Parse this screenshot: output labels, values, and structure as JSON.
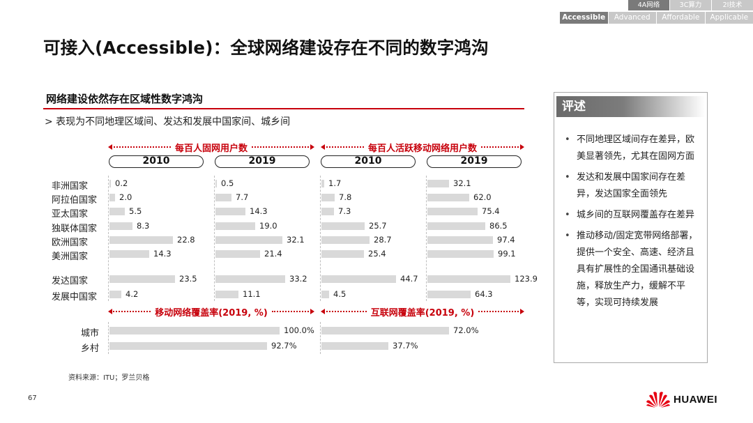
{
  "nav": {
    "top_tabs": [
      {
        "label": "4A网络",
        "active": true
      },
      {
        "label": "3C算力",
        "active": false
      },
      {
        "label": "2I技术",
        "active": false
      }
    ],
    "bottom_tabs": [
      {
        "label": "Accessible",
        "active": true
      },
      {
        "label": "Advanced",
        "active": false
      },
      {
        "label": "Affordable",
        "active": false
      },
      {
        "label": "Applicable",
        "active": false
      }
    ]
  },
  "title": "可接入(Accessible)：全球网络建设存在不同的数字鸿沟",
  "section": {
    "title": "网络建设依然存在区域性数字鸿沟",
    "subtitle": "> 表现为不同地理区域间、发达和发展中国家间、城乡间"
  },
  "headers": {
    "fixed": "每百人固网用户数",
    "mobile": "每百人活跃移动网络用户数",
    "mobile_coverage": "移动网络覆盖率(2019, %)",
    "internet_coverage": "互联网覆盖率(2019, %)"
  },
  "years": [
    "2010",
    "2019",
    "2010",
    "2019"
  ],
  "chart_data": {
    "type": "bar",
    "categories": [
      "非洲国家",
      "阿拉伯国家",
      "亚太国家",
      "独联体国家",
      "欧洲国家",
      "美洲国家",
      "发达国家",
      "发展中国家"
    ],
    "series": [
      {
        "name": "2010",
        "values": [
          0.2,
          2.0,
          5.5,
          8.3,
          22.8,
          14.3,
          23.5,
          4.2
        ]
      },
      {
        "name": "2019",
        "values": [
          0.5,
          7.7,
          14.3,
          19.0,
          32.1,
          21.4,
          33.2,
          11.1
        ]
      },
      {
        "name": "2010",
        "values": [
          1.7,
          7.8,
          7.3,
          25.7,
          28.7,
          25.4,
          44.7,
          4.5
        ]
      },
      {
        "name": "2019",
        "values": [
          32.1,
          62.0,
          75.4,
          86.5,
          97.4,
          99.1,
          123.9,
          64.3
        ]
      }
    ],
    "value_labels": [
      [
        "0.2",
        "2.0",
        "5.5",
        "8.3",
        "22.8",
        "14.3",
        "23.5",
        "4.2"
      ],
      [
        "0.5",
        "7.7",
        "14.3",
        "19.0",
        "32.1",
        "21.4",
        "33.2",
        "11.1"
      ],
      [
        "1.7",
        "7.8",
        "7.3",
        "25.7",
        "28.7",
        "25.4",
        "44.7",
        "4.5"
      ],
      [
        "32.1",
        "62.0",
        "75.4",
        "86.5",
        "97.4",
        "99.1",
        "123.9",
        "64.3"
      ]
    ],
    "scale_max": [
      30,
      40,
      50,
      125
    ],
    "coverage": {
      "categories": [
        "城市",
        "乡村"
      ],
      "mobile_values": [
        100.0,
        92.7
      ],
      "mobile_labels": [
        "100.0%",
        "92.7%"
      ],
      "internet_values": [
        72.0,
        37.7
      ],
      "internet_labels": [
        "72.0%",
        "37.7%"
      ]
    }
  },
  "source": "资料来源：ITU；罗兰贝格",
  "page_number": "67",
  "comment": {
    "title": "评述",
    "items": [
      "不同地理区域间存在差异，欧美显著领先，尤其在固网方面",
      "发达和发展中国家间存在差异，发达国家全面领先",
      "城乡间的互联网覆盖存在差异",
      "推动移动/固定宽带网络部署，提供一个安全、高速、经济且具有扩展性的全国通讯基础设施，释放生产力，缓解不平等，实现可持续发展"
    ]
  },
  "logo": {
    "text": "HUAWEI",
    "color": "#e60012"
  },
  "colors": {
    "accent": "#c7000b",
    "bar": "#d9d9d9",
    "nav_active": "#7a7a7a",
    "nav_inactive": "#c8c8c8"
  }
}
